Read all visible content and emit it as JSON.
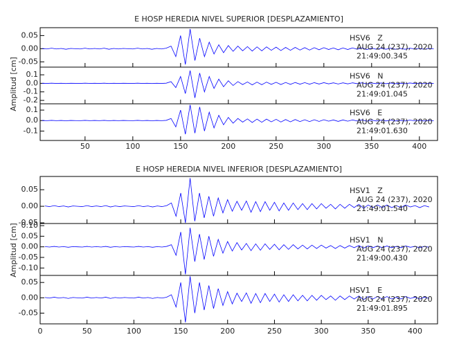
{
  "chart_data": [
    {
      "type": "line",
      "title": "E HOSP HEREDIA NIVEL SUPERIOR [DESPLAZAMIENTO]",
      "ylabel": "Amplitud [cm]",
      "xlim": [
        3,
        419
      ],
      "xticks": [
        50,
        100,
        150,
        200,
        250,
        300,
        350,
        400
      ],
      "x": [
        5,
        10,
        15,
        20,
        25,
        30,
        35,
        40,
        45,
        50,
        55,
        60,
        65,
        70,
        75,
        80,
        85,
        90,
        95,
        100,
        105,
        110,
        115,
        120,
        125,
        130,
        135,
        140,
        145,
        150,
        155,
        160,
        165,
        170,
        175,
        180,
        185,
        190,
        195,
        200,
        205,
        210,
        215,
        220,
        225,
        230,
        235,
        240,
        245,
        250,
        255,
        260,
        265,
        270,
        275,
        280,
        285,
        290,
        295,
        300,
        305,
        310,
        315,
        320,
        325,
        330,
        335,
        340,
        345,
        350,
        355,
        360,
        365,
        370,
        375,
        380,
        385,
        390,
        395,
        400,
        405,
        410,
        415
      ],
      "panels": [
        {
          "name": "HSV6   Z",
          "date": "AUG 24 (237), 2020",
          "time": "21:49:00.345",
          "color": "#0000ff",
          "ylim": [
            -0.07,
            0.08
          ],
          "yticks": [
            0.05,
            {
              "value": 0,
              "label": "0.00"
            },
            -0.05
          ],
          "values": [
            0.001,
            -0.001,
            0.002,
            -0.001,
            0.001,
            -0.002,
            0.001,
            0,
            -0.001,
            0.002,
            -0.001,
            0.001,
            -0.001,
            0.002,
            -0.002,
            0.001,
            -0.001,
            0.001,
            0,
            -0.001,
            0.002,
            -0.001,
            0.001,
            -0.002,
            0.001,
            -0.001,
            0.002,
            0.01,
            -0.03,
            0.05,
            -0.06,
            0.075,
            -0.045,
            0.04,
            -0.03,
            0.025,
            -0.02,
            0.015,
            -0.015,
            0.012,
            -0.01,
            0.01,
            -0.008,
            0.008,
            -0.009,
            0.007,
            -0.008,
            0.007,
            -0.006,
            0.006,
            -0.007,
            0.005,
            -0.006,
            0.005,
            -0.005,
            0.004,
            -0.005,
            0.004,
            -0.004,
            0.004,
            -0.003,
            0.003,
            -0.004,
            0.003,
            -0.003,
            0.003,
            -0.002,
            0.003,
            -0.003,
            0.002,
            -0.002,
            0.002,
            -0.002,
            0.002,
            -0.002,
            0.001,
            -0.002,
            0.002,
            -0.001,
            0.001,
            -0.002,
            0.001,
            -0.001
          ]
        },
        {
          "name": "HSV6   N",
          "date": "AUG 24 (237), 2020",
          "time": "21:49:01.045",
          "color": "#0000ff",
          "ylim": [
            -0.24,
            0.19
          ],
          "yticks": [
            0.1,
            {
              "value": 0,
              "label": "0.0"
            },
            -0.1,
            -0.2
          ],
          "values": [
            0.001,
            -0.001,
            0.002,
            -0.001,
            0.001,
            -0.002,
            0.001,
            0,
            -0.001,
            0.002,
            -0.001,
            0.001,
            -0.001,
            0.002,
            -0.002,
            0.001,
            -0.001,
            0.001,
            0,
            -0.001,
            0.002,
            -0.001,
            0.001,
            -0.002,
            0.001,
            -0.001,
            0.002,
            0.02,
            -0.05,
            0.08,
            -0.12,
            0.15,
            -0.17,
            0.12,
            -0.1,
            0.08,
            -0.06,
            0.05,
            -0.04,
            0.03,
            -0.025,
            0.02,
            -0.015,
            0.016,
            -0.018,
            0.014,
            -0.016,
            0.014,
            -0.012,
            0.012,
            -0.014,
            0.01,
            -0.012,
            0.01,
            -0.01,
            0.008,
            -0.01,
            0.008,
            -0.008,
            0.008,
            -0.006,
            0.006,
            -0.008,
            0.006,
            -0.006,
            0.006,
            -0.004,
            0.006,
            -0.006,
            0.004,
            -0.004,
            0.004,
            -0.004,
            0.004,
            -0.004,
            0.002,
            -0.004,
            0.004,
            -0.002,
            0.002,
            -0.004,
            0.002,
            -0.002
          ]
        },
        {
          "name": "HSV6   E",
          "date": "AUG 24 (237), 2020",
          "time": "21:49:01.630",
          "color": "#0000ff",
          "ylim": [
            -0.19,
            0.16
          ],
          "yticks": [
            0.1,
            {
              "value": 0,
              "label": "0.0"
            },
            -0.1
          ],
          "values": [
            0.001,
            -0.001,
            0.002,
            -0.001,
            0.001,
            -0.002,
            0.001,
            0,
            -0.001,
            0.002,
            -0.001,
            0.001,
            -0.001,
            0.002,
            -0.002,
            0.001,
            -0.001,
            0.001,
            0,
            -0.001,
            0.002,
            -0.001,
            0.001,
            -0.002,
            0.001,
            -0.001,
            0.002,
            0.02,
            -0.06,
            0.1,
            -0.13,
            0.15,
            -0.12,
            0.13,
            -0.1,
            0.08,
            -0.07,
            0.05,
            -0.04,
            0.03,
            -0.025,
            0.02,
            -0.015,
            0.016,
            -0.018,
            0.014,
            -0.016,
            0.014,
            -0.012,
            0.012,
            -0.014,
            0.01,
            -0.012,
            0.01,
            -0.01,
            0.008,
            -0.01,
            0.008,
            -0.008,
            0.008,
            -0.006,
            0.006,
            -0.008,
            0.006,
            -0.006,
            0.006,
            -0.004,
            0.006,
            -0.006,
            0.004,
            -0.004,
            0.004,
            -0.004,
            0.004,
            -0.004,
            0.002,
            -0.004,
            0.004,
            -0.002,
            0.002,
            -0.004,
            0.002,
            -0.002
          ]
        }
      ]
    },
    {
      "type": "line",
      "title": "E HOSP HEREDIA NIVEL INFERIOR [DESPLAZAMIENTO]",
      "ylabel": "Amplitud [cm]",
      "xlim": [
        0,
        424
      ],
      "xticks": [
        0,
        50,
        100,
        150,
        200,
        250,
        300,
        350,
        400
      ],
      "x": [
        5,
        10,
        15,
        20,
        25,
        30,
        35,
        40,
        45,
        50,
        55,
        60,
        65,
        70,
        75,
        80,
        85,
        90,
        95,
        100,
        105,
        110,
        115,
        120,
        125,
        130,
        135,
        140,
        145,
        150,
        155,
        160,
        165,
        170,
        175,
        180,
        185,
        190,
        195,
        200,
        205,
        210,
        215,
        220,
        225,
        230,
        235,
        240,
        245,
        250,
        255,
        260,
        265,
        270,
        275,
        280,
        285,
        290,
        295,
        300,
        305,
        310,
        315,
        320,
        325,
        330,
        335,
        340,
        345,
        350,
        355,
        360,
        365,
        370,
        375,
        380,
        385,
        390,
        395,
        400,
        405,
        410,
        415
      ],
      "panels": [
        {
          "name": "HSV1   Z",
          "date": "AUG 24 (237), 2020",
          "time": "21:49:01.540",
          "color": "#0000ff",
          "ylim": [
            -0.052,
            0.09
          ],
          "yticks": [
            0.05,
            {
              "value": 0,
              "label": "0.00"
            },
            -0.05
          ],
          "values": [
            0.001,
            -0.001,
            0.002,
            -0.001,
            0.001,
            -0.002,
            0.001,
            0,
            -0.001,
            0.002,
            -0.001,
            0.001,
            -0.001,
            0.002,
            -0.002,
            0.001,
            -0.001,
            0.001,
            0,
            -0.001,
            0.002,
            -0.001,
            0.001,
            -0.002,
            0.001,
            -0.001,
            0.002,
            0.01,
            -0.03,
            0.04,
            -0.05,
            0.085,
            -0.045,
            0.04,
            -0.035,
            0.03,
            -0.03,
            0.025,
            -0.02,
            0.02,
            -0.015,
            0.015,
            -0.012,
            0.016,
            -0.018,
            0.014,
            -0.016,
            0.014,
            -0.012,
            0.012,
            -0.014,
            0.01,
            -0.012,
            0.01,
            -0.01,
            0.008,
            -0.01,
            0.008,
            -0.008,
            0.008,
            -0.006,
            0.006,
            -0.008,
            0.006,
            -0.006,
            0.006,
            -0.004,
            0.006,
            -0.006,
            0.004,
            -0.004,
            0.004,
            -0.004,
            0.004,
            -0.004,
            0.002,
            -0.004,
            0.004,
            -0.002,
            0.002,
            -0.004,
            0.002,
            -0.002
          ]
        },
        {
          "name": "HSV1   N",
          "date": "AUG 24 (237), 2020",
          "time": "21:49:00.430",
          "color": "#0000ff",
          "ylim": [
            -0.135,
            0.11
          ],
          "yticks": [
            {
              "value": 0.1,
              "label": "0.10"
            },
            0.05,
            {
              "value": 0,
              "label": "0.00"
            },
            -0.05,
            {
              "value": -0.1,
              "label": "-0.10"
            }
          ],
          "values": [
            0.001,
            -0.001,
            0.002,
            -0.001,
            0.001,
            -0.002,
            0.001,
            0,
            -0.001,
            0.002,
            -0.001,
            0.001,
            -0.001,
            0.002,
            -0.002,
            0.001,
            -0.001,
            0.001,
            0,
            -0.001,
            0.002,
            -0.001,
            0.001,
            -0.002,
            0.001,
            -0.001,
            0.002,
            0.01,
            -0.04,
            0.07,
            -0.13,
            0.09,
            -0.07,
            0.06,
            -0.06,
            0.05,
            -0.045,
            0.035,
            -0.03,
            0.025,
            -0.02,
            0.02,
            -0.015,
            0.016,
            -0.018,
            0.014,
            -0.016,
            0.014,
            -0.012,
            0.012,
            -0.014,
            0.01,
            -0.012,
            0.01,
            -0.01,
            0.008,
            -0.01,
            0.008,
            -0.008,
            0.008,
            -0.006,
            0.006,
            -0.008,
            0.006,
            -0.006,
            0.006,
            -0.004,
            0.006,
            -0.006,
            0.004,
            -0.004,
            0.004,
            -0.004,
            0.004,
            -0.004,
            0.002,
            -0.004,
            0.004,
            -0.002,
            0.002,
            -0.004,
            0.002,
            -0.002
          ]
        },
        {
          "name": "HSV1   E",
          "date": "AUG 24 (237), 2020",
          "time": "21:49:01.895",
          "color": "#0000ff",
          "ylim": [
            -0.085,
            0.073
          ],
          "yticks": [
            0.05,
            {
              "value": 0,
              "label": "0.00"
            },
            -0.05
          ],
          "values": [
            0.001,
            -0.001,
            0.002,
            -0.001,
            0.001,
            -0.002,
            0.001,
            0,
            -0.001,
            0.002,
            -0.001,
            0.001,
            -0.001,
            0.002,
            -0.002,
            0.001,
            -0.001,
            0.001,
            0,
            -0.001,
            0.002,
            -0.001,
            0.001,
            -0.002,
            0.001,
            -0.001,
            0.002,
            0.01,
            -0.03,
            0.05,
            -0.08,
            0.07,
            -0.05,
            0.05,
            -0.04,
            0.04,
            -0.035,
            0.03,
            -0.025,
            0.02,
            -0.02,
            0.015,
            -0.012,
            0.016,
            -0.018,
            0.014,
            -0.016,
            0.014,
            -0.012,
            0.012,
            -0.014,
            0.01,
            -0.012,
            0.01,
            -0.01,
            0.008,
            -0.01,
            0.008,
            -0.008,
            0.008,
            -0.006,
            0.006,
            -0.008,
            0.006,
            -0.006,
            0.006,
            -0.004,
            0.006,
            -0.006,
            0.004,
            -0.004,
            0.004,
            -0.004,
            0.004,
            -0.004,
            0.002,
            -0.004,
            0.004,
            -0.002,
            0.002,
            -0.004,
            0.002,
            -0.002
          ]
        }
      ]
    }
  ]
}
